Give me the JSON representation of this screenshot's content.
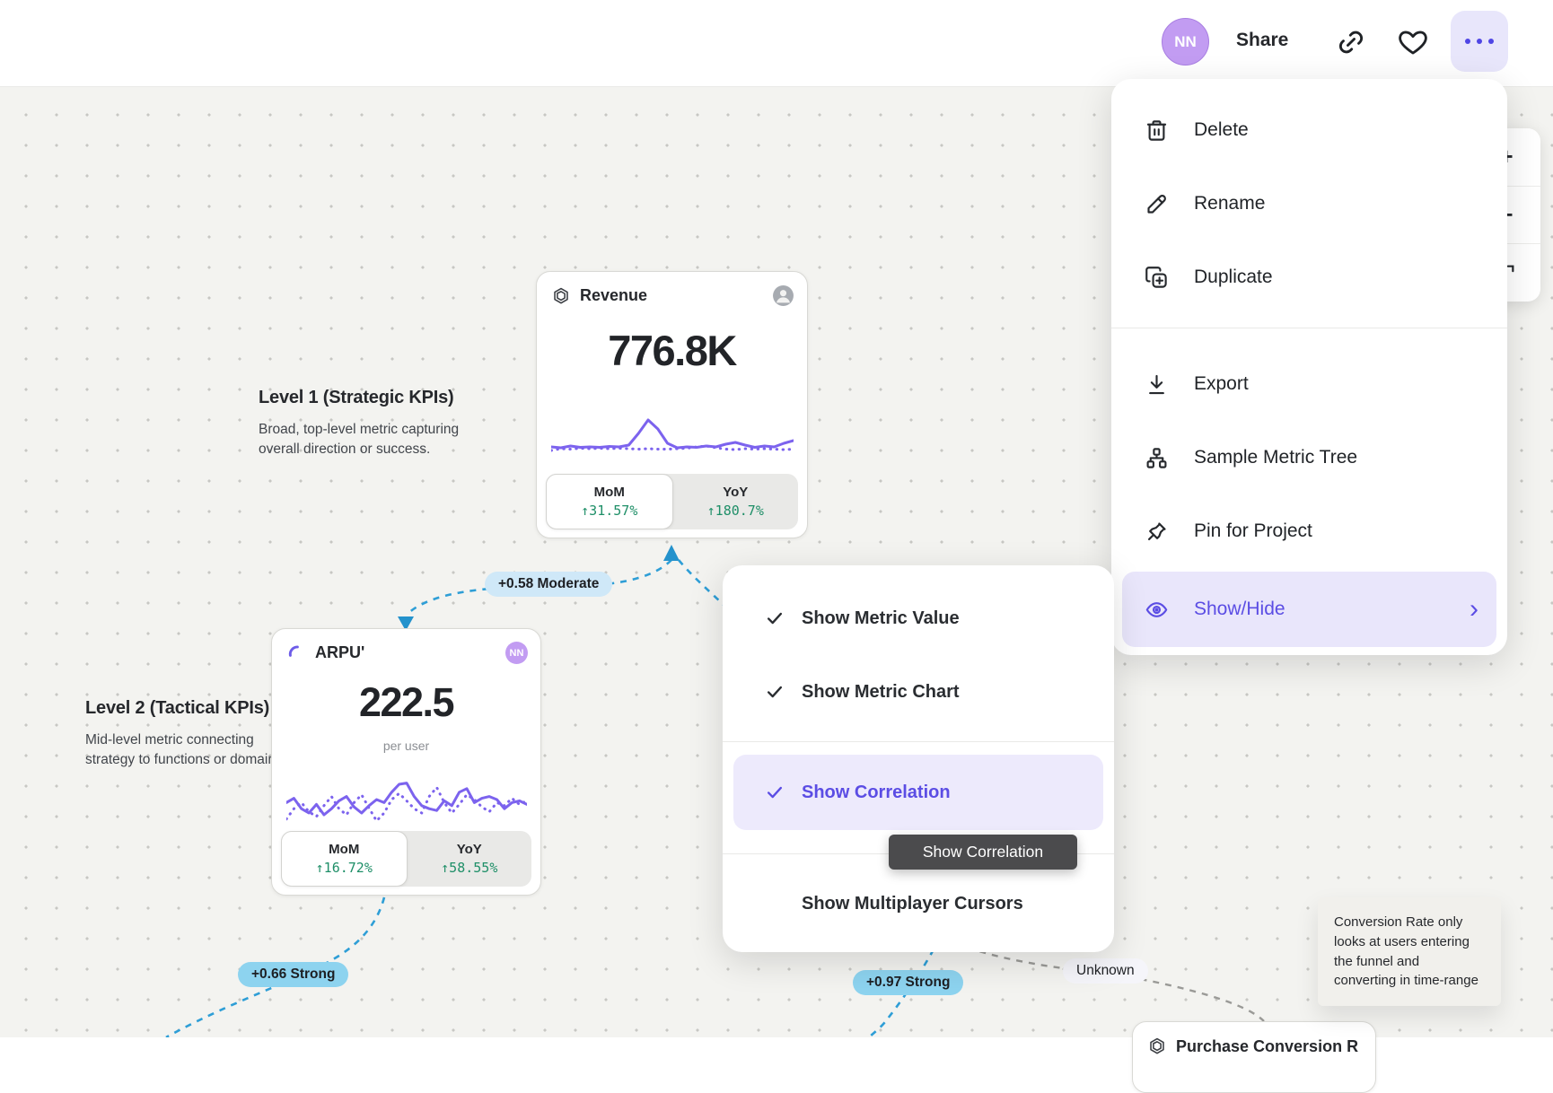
{
  "topbar": {
    "avatar_initials": "NN",
    "share_label": "Share"
  },
  "menu": {
    "items": [
      {
        "label": "Delete"
      },
      {
        "label": "Rename"
      },
      {
        "label": "Duplicate"
      }
    ],
    "items_secondary": [
      {
        "label": "Export"
      },
      {
        "label": "Sample Metric Tree"
      },
      {
        "label": "Pin for Project"
      }
    ],
    "show_hide": {
      "label": "Show/Hide",
      "chevron": "›"
    }
  },
  "submenu": {
    "items": [
      {
        "label": "Show Metric Value",
        "checked": true
      },
      {
        "label": "Show Metric Chart",
        "checked": true
      },
      {
        "label": "Show Correlation",
        "checked": true,
        "highlighted": true
      },
      {
        "label": "Show Multiplayer Cursors",
        "checked": false
      }
    ]
  },
  "tooltip": {
    "label": "Show Correlation"
  },
  "zoom_controls": {
    "zoom_in": "+",
    "zoom_out": "−"
  },
  "canvas": {
    "level1": {
      "title": "Level 1 (Strategic KPIs)",
      "description": "Broad, top-level metric capturing overall direction or success."
    },
    "level2": {
      "title": "Level 2 (Tactical KPIs)",
      "description": "Mid-level metric connecting strategy to functions or domains."
    },
    "cards": {
      "revenue": {
        "title": "Revenue",
        "value": "776.8K",
        "tabs": {
          "mom_label": "MoM",
          "mom_value": "↑31.57%",
          "yoy_label": "YoY",
          "yoy_value": "↑180.7%"
        }
      },
      "arpu": {
        "title": "ARPU'",
        "value": "222.5",
        "unit": "per user",
        "owner_initials": "NN",
        "tabs": {
          "mom_label": "MoM",
          "mom_value": "↑16.72%",
          "yoy_label": "YoY",
          "yoy_value": "↑58.55%"
        }
      },
      "purchase": {
        "title": "Purchase Conversion R"
      }
    },
    "correlation_badges": [
      {
        "label": "+0.58 Moderate",
        "strength": "moderate"
      },
      {
        "label": "+0.66 Strong",
        "strength": "strong"
      },
      {
        "label": "+0.97 Strong",
        "strength": "strong"
      },
      {
        "label": "Unknown",
        "strength": "unknown"
      }
    ],
    "note": {
      "text": "Conversion Rate only looks at users entering the funnel and converting in time-range"
    }
  },
  "sparklines": {
    "revenue": {
      "solid": [
        18,
        16,
        20,
        17,
        18,
        17,
        19,
        18,
        22,
        48,
        78,
        58,
        26,
        16,
        18,
        17,
        20,
        18,
        24,
        28,
        22,
        17,
        20,
        18,
        26,
        32
      ],
      "dotted": [
        10,
        14,
        13,
        15,
        14,
        15,
        14,
        15,
        14,
        13,
        14,
        13,
        13,
        14,
        15,
        18,
        20,
        16,
        13,
        12,
        14,
        13,
        14,
        13,
        12,
        13
      ]
    },
    "arpu": {
      "solid": [
        45,
        52,
        35,
        28,
        42,
        25,
        35,
        48,
        55,
        38,
        28,
        40,
        50,
        45,
        62,
        75,
        77,
        55,
        40,
        35,
        32,
        48,
        40,
        62,
        68,
        45,
        52,
        55,
        50,
        35,
        45,
        48,
        42
      ],
      "dotted": [
        18,
        35,
        45,
        30,
        22,
        40,
        55,
        35,
        25,
        45,
        58,
        36,
        15,
        28,
        50,
        60,
        48,
        35,
        28,
        55,
        70,
        45,
        28,
        42,
        58,
        50,
        38,
        30,
        45,
        40,
        52,
        42,
        48
      ]
    }
  },
  "colors": {
    "accent_purple": "#5b4de4",
    "chart_purple": "#7c63ee",
    "correlation_blue": "#2e9ed6",
    "badge_strong": "#8dd3ef",
    "badge_moderate": "#cfe8f8",
    "positive_green": "#1f8f68",
    "tooltip_bg": "#4b4b4d"
  }
}
